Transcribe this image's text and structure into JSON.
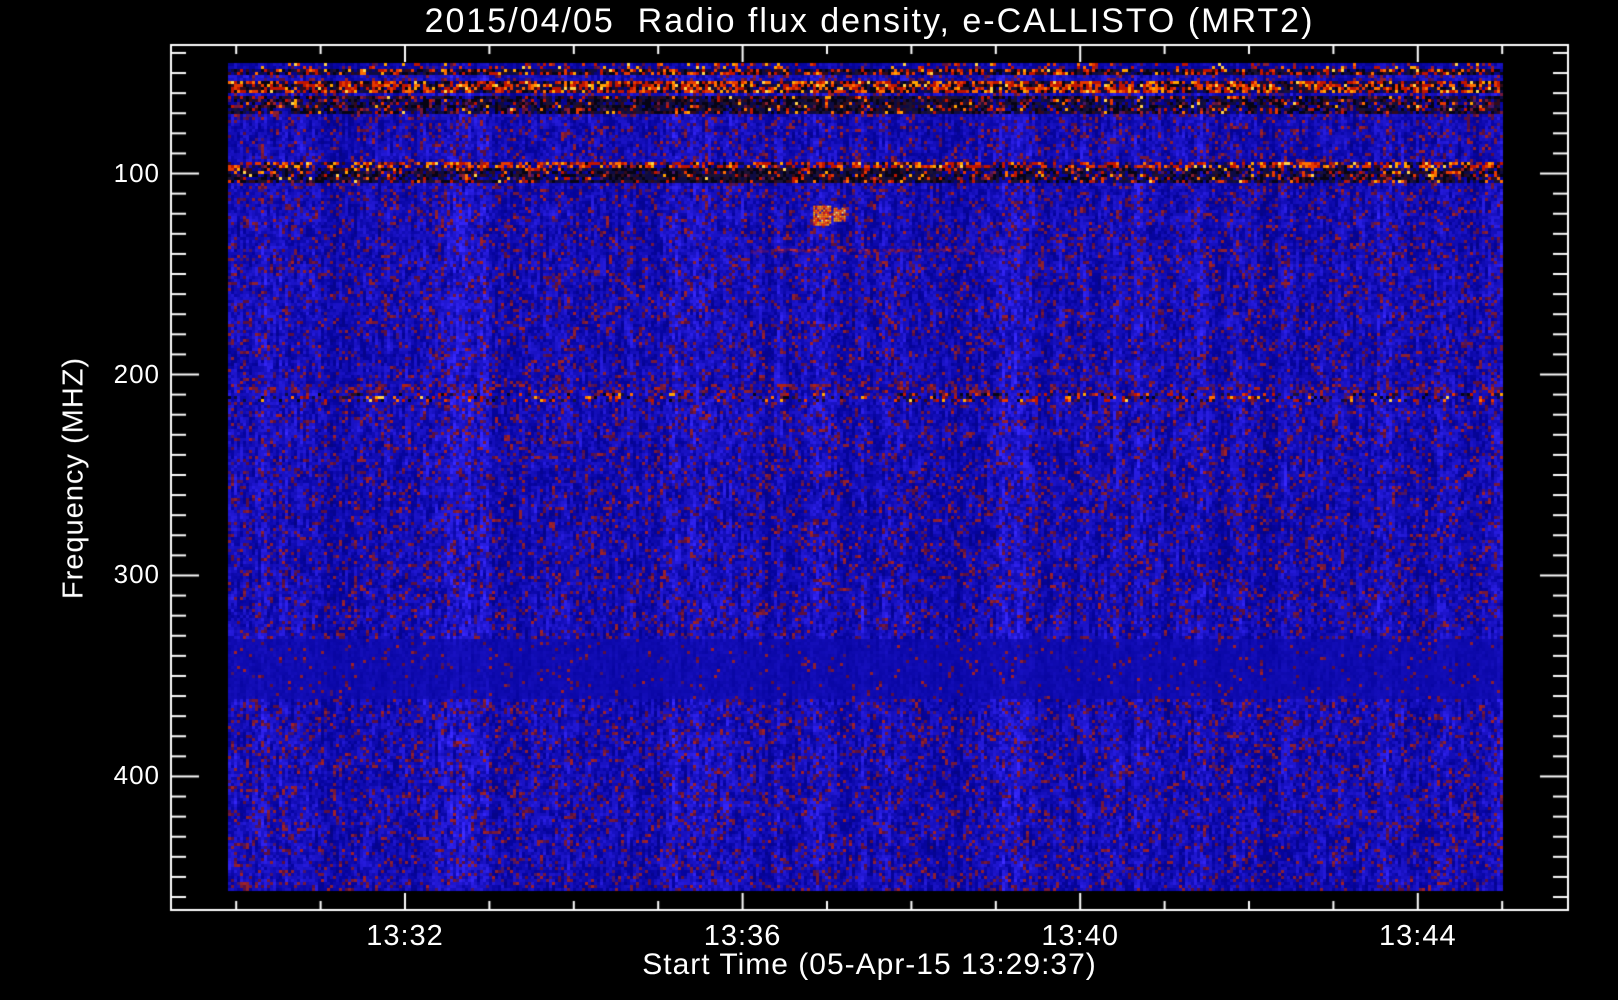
{
  "window": {
    "background": "#000000"
  },
  "chart_data": {
    "type": "heatmap",
    "subtype": "solar-radio-spectrogram",
    "title": "2015/04/05  Radio flux density, e-CALLISTO (MRT2)",
    "xlabel": "Start Time (05-Apr-15 13:29:37)",
    "ylabel": "Frequency (MHZ)",
    "axis_color": "#ffffff",
    "text_color": "#ffffff",
    "grid": false,
    "x_axis": {
      "unit": "time",
      "start_label": "13:29:37",
      "major_ticks": [
        {
          "minute": 32,
          "label": "13:32"
        },
        {
          "minute": 36,
          "label": "13:36"
        },
        {
          "minute": 40,
          "label": "13:40"
        },
        {
          "minute": 44,
          "label": "13:44"
        }
      ],
      "minor_tick_minutes": [
        30,
        31,
        33,
        34,
        35,
        37,
        38,
        39,
        41,
        42,
        43,
        45
      ]
    },
    "y_axis": {
      "unit": "MHz",
      "orientation": "increasing-downward",
      "data_range": [
        45,
        457
      ],
      "major_ticks": [
        {
          "value": 100,
          "label": "100"
        },
        {
          "value": 200,
          "label": "200"
        },
        {
          "value": 300,
          "label": "300"
        },
        {
          "value": 400,
          "label": "400"
        }
      ],
      "minor_step": 10,
      "minor_range": [
        40,
        460
      ]
    },
    "palette": {
      "base_blue_main": "#1c14c8",
      "warm_speckle": [
        "#5a1040",
        "#75183a",
        "#8c2030",
        "#4a1668",
        "#a02028"
      ],
      "bright": [
        "#c01400",
        "#e63800",
        "#ff6f00",
        "#ffa400",
        "#ffd24a"
      ],
      "dark_bg": [
        "#060414",
        "#0e0b44",
        "#1c1235",
        "#330a1a"
      ],
      "spot": [
        "#ff3c00",
        "#ff7700",
        "#ffaa00",
        "#d01800",
        "#ffe070"
      ],
      "streak_red": "rgba(200,30,18,0.35)"
    },
    "background_texture": {
      "description": "vivid blue vertical-dash noise with maroon/purple speckles",
      "warm_speckle_chance": 0.15
    },
    "rfi_bands": [
      {
        "freq_low": 45,
        "freq_high": 47.6,
        "kind": "speckle",
        "density": 0.22
      },
      {
        "freq_low": 47.6,
        "freq_high": 51.6,
        "kind": "bright",
        "density": 0.3
      },
      {
        "freq_low": 54.6,
        "freq_high": 59.6,
        "kind": "bright",
        "density": 0.52
      },
      {
        "freq_low": 61.5,
        "freq_high": 70,
        "kind": "dark",
        "density": 0.1,
        "clump": [
          0.28,
          0.58
        ]
      },
      {
        "freq_low": 94,
        "freq_high": 97.5,
        "kind": "mixed",
        "density": 0.45
      },
      {
        "freq_low": 97.5,
        "freq_high": 104,
        "kind": "dark",
        "density": 0.14,
        "clump": [
          0.3,
          0.56
        ]
      },
      {
        "freq_low": 205,
        "freq_high": 209,
        "kind": "haze",
        "density": 0.06
      },
      {
        "freq_low": 209,
        "freq_high": 214,
        "kind": "sparse",
        "density": 0.12
      },
      {
        "freq_low": 332,
        "freq_high": 362,
        "kind": "smooth",
        "density": 0
      }
    ],
    "features": [
      {
        "kind": "bright-spot",
        "t_frac_from": 0.459,
        "t_frac_to": 0.473,
        "freq_low": 116,
        "freq_high": 125
      },
      {
        "kind": "bright-spot",
        "t_frac_from": 0.475,
        "t_frac_to": 0.484,
        "freq_low": 117,
        "freq_high": 123
      },
      {
        "kind": "red-streak",
        "t_frac_from": 0.41,
        "t_frac_to": 0.62,
        "freq_low": 136,
        "freq_high": 140
      }
    ]
  }
}
